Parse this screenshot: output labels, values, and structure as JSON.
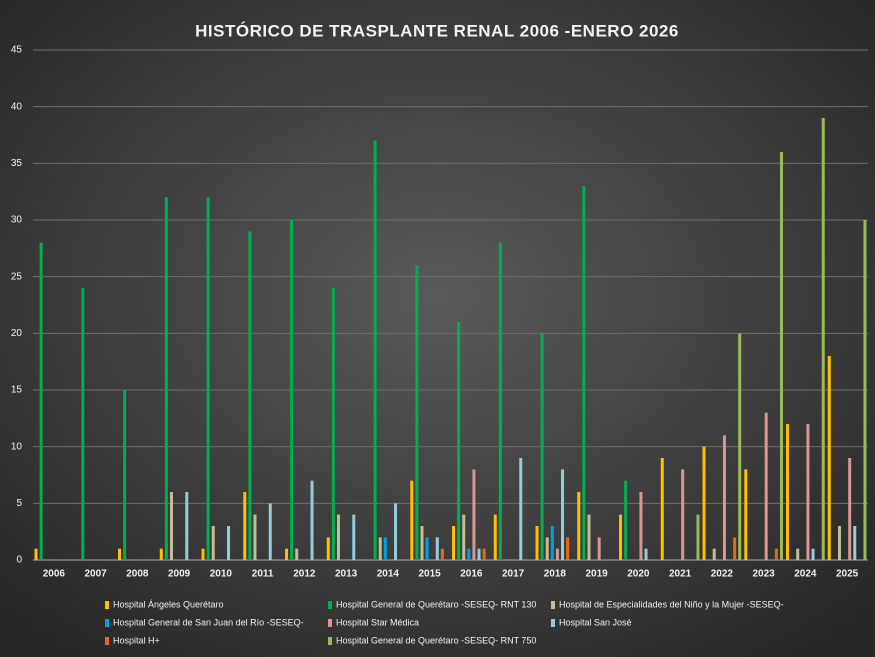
{
  "chart_data": {
    "type": "bar",
    "title": "HISTÓRICO DE TRASPLANTE RENAL 2006 -ENERO 2026",
    "categories": [
      "2006",
      "2007",
      "2008",
      "2009",
      "2010",
      "2011",
      "2012",
      "2013",
      "2014",
      "2015",
      "2016",
      "2017",
      "2018",
      "2019",
      "2020",
      "2021",
      "2022",
      "2023",
      "2024",
      "2025"
    ],
    "series": [
      {
        "name": "Hospital Ángeles Querétaro",
        "color": "#FFC000",
        "values": [
          1,
          0,
          1,
          1,
          1,
          6,
          1,
          2,
          0,
          7,
          3,
          4,
          3,
          6,
          4,
          9,
          10,
          8,
          12,
          18
        ]
      },
      {
        "name": "Hospital General de Querétaro -SESEQ- RNT 130",
        "color": "#00B050",
        "values": [
          28,
          24,
          15,
          32,
          32,
          29,
          30,
          24,
          37,
          26,
          21,
          28,
          20,
          33,
          7,
          0,
          0,
          0,
          0,
          0
        ]
      },
      {
        "name": "Hospital de Especialidades del Niño y la Mujer -SESEQ-",
        "color": "#C4BD97",
        "values": [
          0,
          0,
          0,
          6,
          3,
          4,
          1,
          4,
          2,
          3,
          4,
          0,
          2,
          4,
          0,
          0,
          1,
          0,
          1,
          3
        ]
      },
      {
        "name": "Hospital General de San Juan del Río -SESEQ-",
        "color": "#00A0E9",
        "values": [
          0,
          0,
          0,
          0,
          0,
          0,
          0,
          0,
          2,
          2,
          1,
          0,
          3,
          0,
          0,
          0,
          0,
          0,
          0,
          0
        ]
      },
      {
        "name": "Hospital Star Médica",
        "color": "#D99694",
        "values": [
          0,
          0,
          0,
          0,
          0,
          0,
          0,
          0,
          0,
          0,
          8,
          0,
          1,
          2,
          6,
          8,
          11,
          13,
          12,
          9
        ]
      },
      {
        "name": "Hospital San José",
        "color": "#93CDDD",
        "values": [
          0,
          0,
          0,
          6,
          3,
          5,
          7,
          4,
          5,
          2,
          1,
          9,
          8,
          0,
          1,
          0,
          0,
          0,
          1,
          3
        ]
      },
      {
        "name": "Hospital H+",
        "color": "#E46C0A",
        "values": [
          0,
          0,
          0,
          0,
          0,
          0,
          0,
          0,
          0,
          1,
          1,
          0,
          2,
          0,
          0,
          0,
          2,
          1,
          0,
          0
        ]
      },
      {
        "name": "Hospital General de Querétaro -SESEQ- RNT 750",
        "color": "#9BBB59",
        "values": [
          0,
          0,
          0,
          0,
          0,
          0,
          0,
          0,
          0,
          0,
          0,
          0,
          0,
          0,
          0,
          4,
          20,
          36,
          39,
          30
        ]
      }
    ],
    "ylim": [
      0,
      45
    ],
    "yticks": [
      0,
      5,
      10,
      15,
      20,
      25,
      30,
      35,
      40,
      45
    ],
    "grid": true
  }
}
